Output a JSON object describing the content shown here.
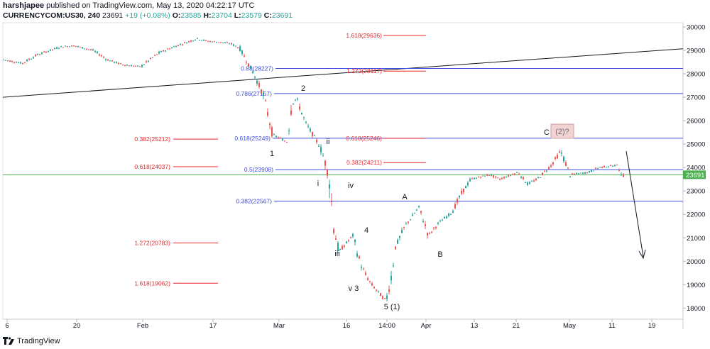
{
  "header": {
    "author": "harshjapee",
    "published": "published on TradingView.com, May 13, 2020 04:22:17 UTC",
    "symbol": "CURRENCYCOM:US30, 240",
    "last": "23691",
    "change": "+19 (+0.08%)",
    "o_label": "O:",
    "o_value": "23585",
    "h_label": "H:",
    "h_value": "23704",
    "l_label": "L:",
    "l_value": "23579",
    "c_label": "C:",
    "c_value": "23691"
  },
  "footer": {
    "brand": "TradingView"
  },
  "colors": {
    "up": "#26a69a",
    "down": "#ef5350",
    "blue": "#3f4bdc",
    "red": "#e8262b",
    "green": "#4caf50"
  },
  "chart_data": {
    "type": "candlestick",
    "ylim": [
      17500,
      30200
    ],
    "y_ticks": [
      "30000",
      "29000",
      "28000",
      "27000",
      "26000",
      "25000",
      "24000",
      "23000",
      "22000",
      "21000",
      "20000",
      "19000",
      "18000"
    ],
    "x_ticks": [
      "6",
      "20",
      "Feb",
      "17",
      "Mar",
      "16",
      "14:00",
      "Apr",
      "13",
      "21",
      "May",
      "11",
      "19"
    ],
    "last_price": "23691",
    "price_path": [
      [
        "Jan 2",
        28600
      ],
      [
        "Jan 6",
        28450
      ],
      [
        "Jan 9",
        28800
      ],
      [
        "Jan 14",
        29150
      ],
      [
        "Jan 17",
        29200
      ],
      [
        "Jan 21",
        29000
      ],
      [
        "Jan 24",
        28600
      ],
      [
        "Jan 27",
        28400
      ],
      [
        "Jan 31",
        28300
      ],
      [
        "Feb 4",
        28900
      ],
      [
        "Feb 7",
        29150
      ],
      [
        "Feb 12",
        29500
      ],
      [
        "Feb 14",
        29400
      ],
      [
        "Feb 19",
        29300
      ],
      [
        "Feb 21",
        29100
      ],
      [
        "Feb 24",
        28000
      ],
      [
        "Feb 26",
        27100
      ],
      [
        "Feb 28",
        25400
      ],
      [
        "Mar 2",
        25100
      ],
      [
        "Mar 3",
        26700
      ],
      [
        "Mar 4",
        26950
      ],
      [
        "Mar 6",
        25900
      ],
      [
        "Mar 9",
        24900
      ],
      [
        "Mar 10",
        24300
      ],
      [
        "Mar 11",
        23500
      ],
      [
        "Mar 12",
        21400
      ],
      [
        "Mar 13",
        20400
      ],
      [
        "Mar 16",
        21100
      ],
      [
        "Mar 17",
        20300
      ],
      [
        "Mar 18",
        19700
      ],
      [
        "Mar 19",
        19300
      ],
      [
        "Mar 20",
        19000
      ],
      [
        "Mar 23",
        18300
      ],
      [
        "Mar 24",
        19200
      ],
      [
        "Mar 25",
        20600
      ],
      [
        "Mar 27",
        21500
      ],
      [
        "Mar 30",
        22300
      ],
      [
        "Apr 1",
        21100
      ],
      [
        "Apr 3",
        21600
      ],
      [
        "Apr 6",
        22100
      ],
      [
        "Apr 8",
        22900
      ],
      [
        "Apr 10",
        23500
      ],
      [
        "Apr 14",
        23700
      ],
      [
        "Apr 16",
        23500
      ],
      [
        "Apr 20",
        23800
      ],
      [
        "Apr 22",
        23300
      ],
      [
        "Apr 24",
        23500
      ],
      [
        "Apr 27",
        24100
      ],
      [
        "Apr 29",
        24700
      ],
      [
        "Apr 30",
        24200
      ],
      [
        "May 1",
        23700
      ],
      [
        "May 5",
        23800
      ],
      [
        "May 7",
        24000
      ],
      [
        "May 11",
        24100
      ],
      [
        "May 12",
        23690
      ]
    ],
    "fib_blue": [
      {
        "label": "0.88(28227)",
        "value": 28227
      },
      {
        "label": "0.786(27157)",
        "value": 27157
      },
      {
        "label": "0.618(25249)",
        "value": 25249
      },
      {
        "label": "0.5(23908)",
        "value": 23908
      },
      {
        "label": "0.382(22567)",
        "value": 22567
      }
    ],
    "fib_red": [
      {
        "label": "1.618(29636)",
        "value": 29636
      },
      {
        "label": "1.272(28117)",
        "value": 28117
      },
      {
        "label": "0.618(25246)",
        "value": 25246
      },
      {
        "label": "0.382(24211)",
        "value": 24211
      },
      {
        "label": "0.382(25212)",
        "value": 25212
      },
      {
        "label": "0.618(24037)",
        "value": 24037
      },
      {
        "label": "1.272(20783)",
        "value": 20783
      },
      {
        "label": "1.618(19062)",
        "value": 19062
      }
    ],
    "wave_labels": [
      "1",
      "2",
      "i",
      "ii",
      "iii",
      "iv",
      "v 3",
      "4",
      "5 (1)",
      "A",
      "B",
      "C",
      "(2)?"
    ]
  }
}
